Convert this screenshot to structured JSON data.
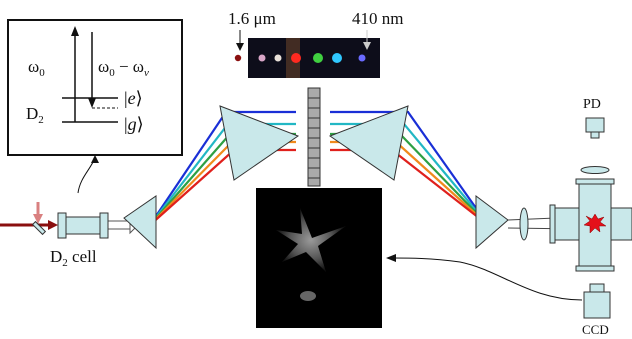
{
  "inset": {
    "omega0": "ω",
    "omega0_sub": "0",
    "omega_diff_a": "ω",
    "omega_diff_a_sub": "0",
    "omega_diff_mid": " − ω",
    "omega_diff_b_sub": "v",
    "state_e": "e",
    "state_g": "g",
    "molecule": "D",
    "molecule_sub": "2"
  },
  "labels": {
    "wavelength_left": "1.6 μm",
    "wavelength_right": "410 nm",
    "pd": "PD",
    "cell": "D",
    "cell_sub": "2",
    "cell_word": " cell",
    "ccd": "CCD"
  },
  "colors": {
    "cell_fill": "#c9e8ea",
    "beam_red": "#e0201c",
    "beam_orange": "#f08a1c",
    "beam_green": "#2ea043",
    "beam_cyan": "#22b7c4",
    "beam_blue": "#1a2fd6",
    "spark": "#e4101a"
  }
}
